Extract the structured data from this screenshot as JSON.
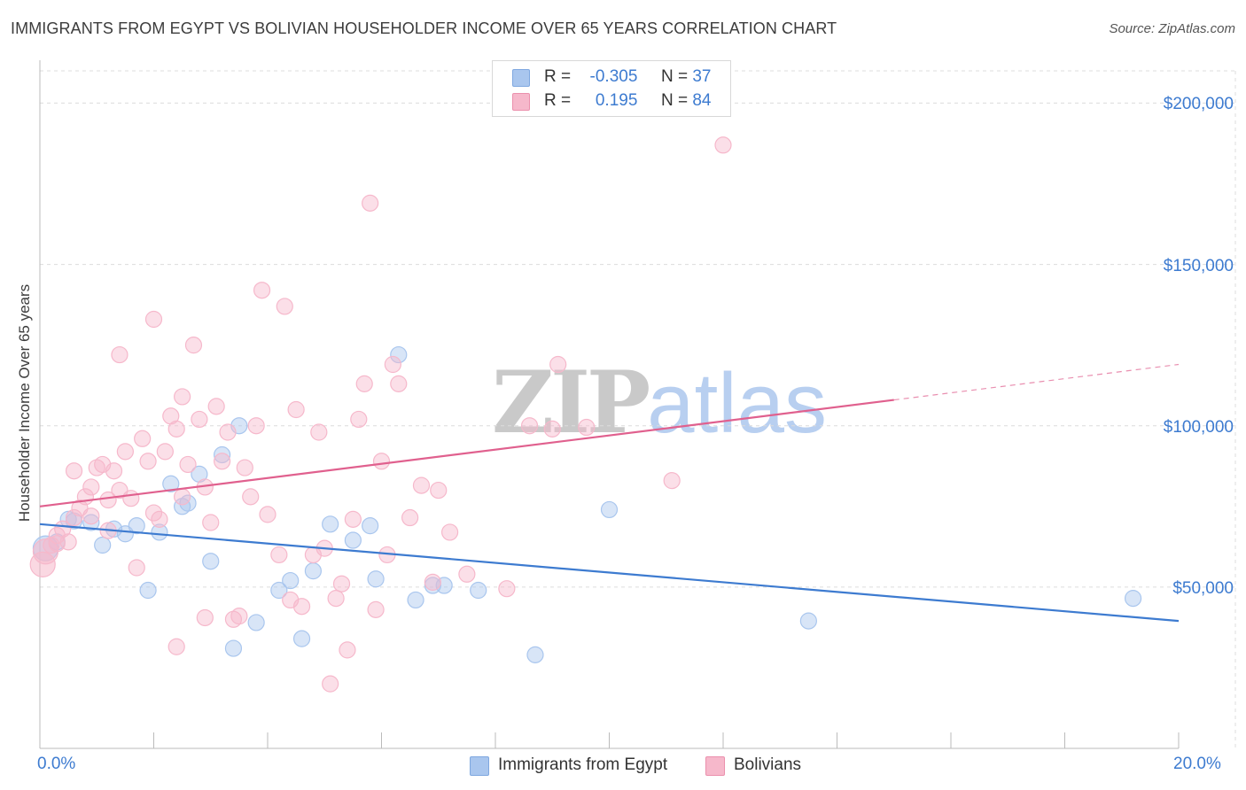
{
  "title": "IMMIGRANTS FROM EGYPT VS BOLIVIAN HOUSEHOLDER INCOME OVER 65 YEARS CORRELATION CHART",
  "source": "Source: ZipAtlas.com",
  "watermark": {
    "zip": "ZIP",
    "atlas": "atlas"
  },
  "legend": {
    "egypt": {
      "r_label": "R =",
      "r_value": "-0.305",
      "n_label": "N =",
      "n_value": "37",
      "color": "#a9c6ee"
    },
    "bolivians": {
      "r_label": "R =",
      "r_value": "0.195",
      "n_label": "N =",
      "n_value": "84",
      "color": "#f6b8cb"
    }
  },
  "bottom_legend": {
    "egypt": "Immigrants from Egypt",
    "bolivians": "Bolivians"
  },
  "chart_data": {
    "type": "scatter",
    "title": "IMMIGRANTS FROM EGYPT VS BOLIVIAN HOUSEHOLDER INCOME OVER 65 YEARS CORRELATION CHART",
    "xlabel": "",
    "ylabel": "Householder Income Over 65 years",
    "xlim": [
      0,
      20
    ],
    "ylim": [
      0,
      210000
    ],
    "x_tick_labels": [
      "0.0%",
      "20.0%"
    ],
    "y_ticks": [
      50000,
      100000,
      150000,
      200000
    ],
    "y_tick_labels": [
      "$50,000",
      "$100,000",
      "$150,000",
      "$200,000"
    ],
    "grid": true,
    "legend_position": "top-center",
    "series": [
      {
        "name": "Immigrants from Egypt",
        "color": "#3d7bd0",
        "fill": "#a9c6ee",
        "trend": {
          "x": [
            0,
            20
          ],
          "y": [
            69500,
            39500
          ]
        },
        "points": [
          [
            0.1,
            62000
          ],
          [
            0.3,
            64000
          ],
          [
            0.5,
            71000
          ],
          [
            0.9,
            70000
          ],
          [
            1.1,
            63000
          ],
          [
            1.3,
            68000
          ],
          [
            1.5,
            66500
          ],
          [
            1.7,
            69000
          ],
          [
            1.9,
            49000
          ],
          [
            2.1,
            67000
          ],
          [
            2.3,
            82000
          ],
          [
            2.5,
            75000
          ],
          [
            2.6,
            76000
          ],
          [
            2.8,
            85000
          ],
          [
            3.0,
            58000
          ],
          [
            3.2,
            91000
          ],
          [
            3.4,
            31000
          ],
          [
            3.5,
            100000
          ],
          [
            3.8,
            39000
          ],
          [
            4.2,
            49000
          ],
          [
            4.4,
            52000
          ],
          [
            4.6,
            34000
          ],
          [
            4.8,
            55000
          ],
          [
            5.1,
            69500
          ],
          [
            5.5,
            64500
          ],
          [
            5.8,
            69000
          ],
          [
            5.9,
            52500
          ],
          [
            6.3,
            122000
          ],
          [
            6.6,
            46000
          ],
          [
            6.9,
            50500
          ],
          [
            7.1,
            50500
          ],
          [
            7.7,
            49000
          ],
          [
            8.7,
            29000
          ],
          [
            10.0,
            74000
          ],
          [
            13.5,
            39500
          ],
          [
            19.2,
            46500
          ],
          [
            0.6,
            70500
          ]
        ]
      },
      {
        "name": "Bolivians",
        "color": "#e0608e",
        "fill": "#f6b8cb",
        "trend": {
          "x": [
            0,
            15.0
          ],
          "y": [
            75000,
            108000
          ]
        },
        "trend_dashed": {
          "x": [
            15.0,
            20
          ],
          "y": [
            108000,
            119000
          ]
        },
        "points": [
          [
            0.05,
            57000
          ],
          [
            0.1,
            61000
          ],
          [
            0.2,
            63000
          ],
          [
            0.3,
            66000
          ],
          [
            0.4,
            68000
          ],
          [
            0.5,
            64000
          ],
          [
            0.6,
            71500
          ],
          [
            0.6,
            86000
          ],
          [
            0.7,
            74500
          ],
          [
            0.8,
            78000
          ],
          [
            0.9,
            72000
          ],
          [
            0.9,
            81000
          ],
          [
            1.0,
            87000
          ],
          [
            1.1,
            88000
          ],
          [
            1.2,
            77000
          ],
          [
            1.3,
            86000
          ],
          [
            1.4,
            80000
          ],
          [
            1.4,
            122000
          ],
          [
            1.5,
            92000
          ],
          [
            1.6,
            77500
          ],
          [
            1.7,
            56000
          ],
          [
            1.8,
            96000
          ],
          [
            1.9,
            89000
          ],
          [
            2.0,
            73000
          ],
          [
            2.0,
            133000
          ],
          [
            2.1,
            71000
          ],
          [
            2.2,
            92000
          ],
          [
            2.3,
            103000
          ],
          [
            2.4,
            99000
          ],
          [
            2.5,
            109000
          ],
          [
            2.5,
            78000
          ],
          [
            2.6,
            88000
          ],
          [
            2.7,
            125000
          ],
          [
            2.8,
            102000
          ],
          [
            2.9,
            81000
          ],
          [
            3.0,
            70000
          ],
          [
            3.1,
            106000
          ],
          [
            3.2,
            89000
          ],
          [
            3.3,
            98000
          ],
          [
            3.4,
            40000
          ],
          [
            3.5,
            41000
          ],
          [
            3.6,
            87000
          ],
          [
            3.7,
            78000
          ],
          [
            3.8,
            100000
          ],
          [
            3.9,
            142000
          ],
          [
            4.0,
            72500
          ],
          [
            4.2,
            60000
          ],
          [
            4.3,
            137000
          ],
          [
            4.4,
            46000
          ],
          [
            4.5,
            105000
          ],
          [
            4.6,
            44000
          ],
          [
            4.8,
            60000
          ],
          [
            4.9,
            98000
          ],
          [
            5.0,
            62000
          ],
          [
            5.1,
            20000
          ],
          [
            5.2,
            46500
          ],
          [
            5.3,
            51000
          ],
          [
            5.4,
            30500
          ],
          [
            5.5,
            71000
          ],
          [
            5.6,
            102000
          ],
          [
            5.7,
            113000
          ],
          [
            5.8,
            169000
          ],
          [
            5.9,
            43000
          ],
          [
            6.0,
            89000
          ],
          [
            6.1,
            60000
          ],
          [
            6.2,
            119000
          ],
          [
            6.3,
            113000
          ],
          [
            6.5,
            71500
          ],
          [
            6.7,
            81500
          ],
          [
            6.9,
            51500
          ],
          [
            7.0,
            80000
          ],
          [
            7.2,
            67000
          ],
          [
            7.5,
            54000
          ],
          [
            8.2,
            49500
          ],
          [
            8.6,
            100000
          ],
          [
            9.0,
            99000
          ],
          [
            9.1,
            119000
          ],
          [
            9.6,
            99500
          ],
          [
            11.1,
            83000
          ],
          [
            12.0,
            187000
          ],
          [
            2.4,
            31500
          ],
          [
            2.9,
            40500
          ],
          [
            1.2,
            67500
          ],
          [
            0.3,
            63500
          ]
        ]
      }
    ]
  }
}
